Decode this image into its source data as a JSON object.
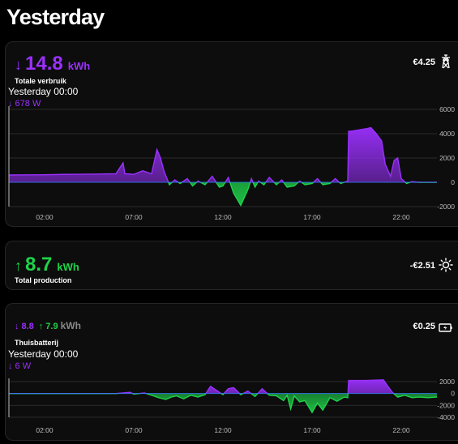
{
  "page": {
    "title": "Yesterday"
  },
  "consumption": {
    "arrow": "↓",
    "value": "14.8",
    "unit": "kWh",
    "label": "Totale verbruik",
    "time": "Yesterday 00:00",
    "power": "↓ 678 W",
    "cost": "€4.25",
    "icon": "power-pylon-icon"
  },
  "production": {
    "arrow": "↑",
    "value": "8.7",
    "unit": "kWh",
    "label": "Total production",
    "cost": "-€2.51",
    "icon": "sun-icon"
  },
  "battery": {
    "in_arrow": "↓",
    "in_value": "8.8",
    "out_arrow": "↑",
    "out_value": "7.9",
    "unit": "kWh",
    "label": "Thuisbatterij",
    "time": "Yesterday 00:00",
    "power": "↓ 6 W",
    "cost": "€0.25",
    "icon": "battery-charging-icon"
  },
  "colors": {
    "consumption": "#9b30ff",
    "production": "#1fd34a",
    "baseline": "#2e7dff"
  },
  "chart_data": [
    {
      "type": "area",
      "name": "consumption-chart",
      "x_ticks": [
        "02:00",
        "07:00",
        "12:00",
        "17:00",
        "22:00"
      ],
      "y_ticks": [
        "6000",
        "4000",
        "2000",
        "0",
        "-2000"
      ],
      "ylim": [
        -2000,
        6000
      ],
      "x_unit": "hours",
      "x": [
        0,
        1,
        2,
        3,
        4,
        5,
        6,
        6.4,
        6.5,
        6.6,
        7,
        7.5,
        8,
        8.3,
        8.5,
        8.7,
        9,
        9.3,
        9.6,
        10,
        10.3,
        10.6,
        11,
        11.4,
        11.8,
        12,
        12.3,
        12.6,
        13,
        13.4,
        13.6,
        13.8,
        14,
        14.3,
        14.6,
        15,
        15.3,
        15.6,
        16,
        16.3,
        16.6,
        17,
        17.3,
        17.6,
        18,
        18.3,
        18.6,
        19,
        19.05,
        19.2,
        19.6,
        20,
        20.3,
        20.6,
        20.9,
        21.1,
        21.4,
        21.6,
        21.8,
        22,
        22.3,
        22.6,
        23,
        23.5,
        24
      ],
      "y": [
        600,
        610,
        620,
        650,
        660,
        680,
        700,
        1600,
        700,
        700,
        650,
        950,
        700,
        2700,
        2000,
        900,
        -200,
        200,
        -100,
        300,
        -300,
        100,
        -200,
        500,
        -400,
        -300,
        400,
        -900,
        -1900,
        -600,
        300,
        -400,
        100,
        -200,
        400,
        -200,
        200,
        -400,
        -300,
        100,
        -200,
        -100,
        300,
        -200,
        -100,
        300,
        -100,
        100,
        4200,
        4200,
        4300,
        4400,
        4500,
        4000,
        3400,
        1500,
        500,
        1800,
        2000,
        300,
        -100,
        50,
        0,
        0,
        0
      ]
    },
    {
      "type": "area",
      "name": "battery-chart",
      "x_ticks": [
        "02:00",
        "07:00",
        "12:00",
        "17:00",
        "22:00"
      ],
      "y_ticks": [
        "2000",
        "0",
        "-2000",
        "-4000"
      ],
      "ylim": [
        -4000,
        2000
      ],
      "x_unit": "hours",
      "x": [
        0,
        2,
        4,
        6,
        6.8,
        7,
        7.3,
        7.6,
        8,
        8.4,
        8.8,
        9.1,
        9.4,
        9.8,
        10.2,
        10.6,
        11,
        11.3,
        11.6,
        12,
        12.3,
        12.6,
        13,
        13.4,
        13.8,
        14.2,
        14.6,
        15,
        15.4,
        15.6,
        15.8,
        16,
        16.3,
        16.6,
        17,
        17.3,
        17.6,
        18,
        18.4,
        18.8,
        19,
        19.05,
        20,
        21,
        21.3,
        21.5,
        21.8,
        22.2,
        22.6,
        23,
        23.5,
        24
      ],
      "y": [
        0,
        0,
        0,
        0,
        200,
        -100,
        0,
        100,
        -300,
        -700,
        -1000,
        -600,
        -400,
        -900,
        -300,
        -600,
        -200,
        1200,
        600,
        -200,
        800,
        1000,
        -200,
        400,
        -500,
        800,
        -300,
        -400,
        -1200,
        -300,
        -2600,
        -400,
        -1400,
        -1200,
        -3200,
        -1600,
        -2800,
        -700,
        -1300,
        -600,
        -700,
        2200,
        2200,
        2300,
        1000,
        200,
        -600,
        -300,
        -700,
        -600,
        -700,
        -600
      ]
    }
  ]
}
